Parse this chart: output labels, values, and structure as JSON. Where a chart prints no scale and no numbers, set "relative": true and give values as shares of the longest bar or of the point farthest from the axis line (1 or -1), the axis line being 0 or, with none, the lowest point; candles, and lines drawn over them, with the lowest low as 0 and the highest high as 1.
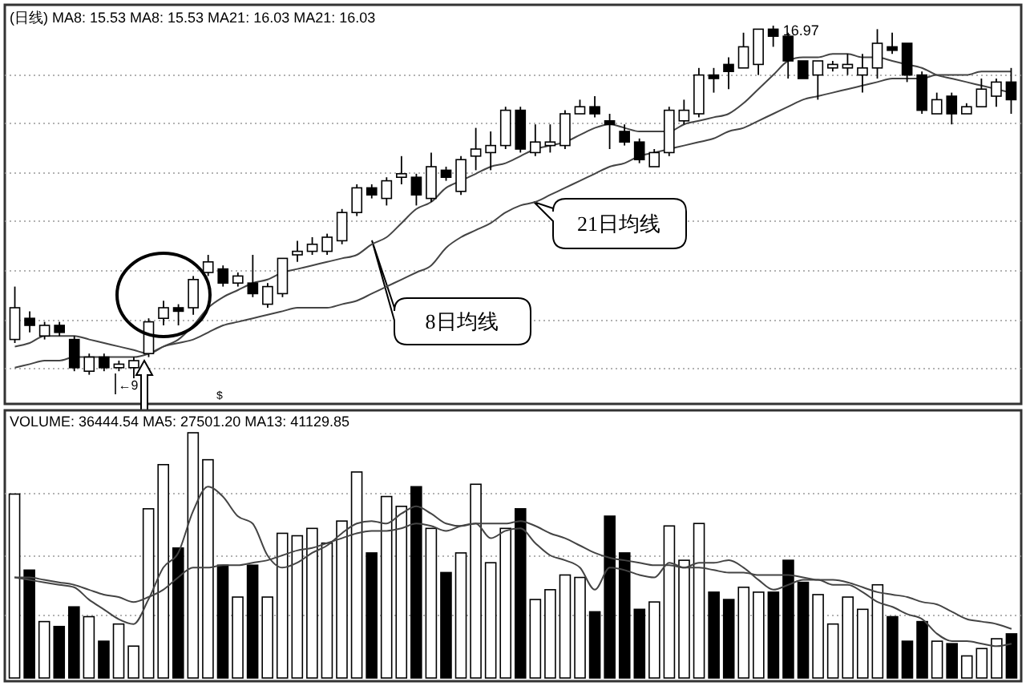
{
  "chart_data": [
    {
      "type": "candlestick",
      "title": "(日线) MA8: 15.53 MA8: 15.53 MA21: 16.03 MA21: 16.03",
      "relative": true,
      "grid": "y",
      "categories": [
        null,
        null,
        null,
        null,
        null,
        null,
        null,
        null,
        null,
        null,
        null,
        null,
        null,
        null,
        null,
        null,
        null,
        null,
        null,
        null,
        null,
        null,
        null,
        null,
        null,
        null,
        null,
        null,
        null,
        null,
        null,
        null,
        null,
        null,
        null,
        null,
        null,
        null,
        null,
        null,
        null,
        null,
        null,
        null,
        null,
        null,
        null,
        null,
        null,
        null,
        null,
        null,
        null,
        null,
        null,
        null,
        null,
        null,
        null,
        null,
        null,
        null,
        null,
        null,
        null,
        null,
        null,
        null
      ],
      "ohlc": [
        [
          0.11,
          0.26,
          0.1,
          0.2
        ],
        [
          0.17,
          0.19,
          0.13,
          0.15
        ],
        [
          0.12,
          0.16,
          0.11,
          0.15
        ],
        [
          0.15,
          0.16,
          0.12,
          0.13
        ],
        [
          0.11,
          0.12,
          0.02,
          0.03
        ],
        [
          0.02,
          0.07,
          0.01,
          0.06
        ],
        [
          0.06,
          0.07,
          0.02,
          0.03
        ],
        [
          0.03,
          0.05,
          0.02,
          0.04
        ],
        [
          0.03,
          0.06,
          0,
          0.05
        ],
        [
          0.07,
          0.17,
          0.06,
          0.16
        ],
        [
          0.17,
          0.22,
          0.15,
          0.2
        ],
        [
          0.2,
          0.21,
          0.15,
          0.19
        ],
        [
          0.2,
          0.29,
          0.18,
          0.28
        ],
        [
          0.3,
          0.35,
          0.29,
          0.33
        ],
        [
          0.31,
          0.32,
          0.26,
          0.27
        ],
        [
          0.27,
          0.3,
          0.26,
          0.29
        ],
        [
          0.27,
          0.35,
          0.23,
          0.24
        ],
        [
          0.21,
          0.27,
          0.2,
          0.26
        ],
        [
          0.24,
          0.34,
          0.23,
          0.34
        ],
        [
          0.35,
          0.39,
          0.33,
          0.36
        ],
        [
          0.36,
          0.4,
          0.35,
          0.38
        ],
        [
          0.36,
          0.41,
          0.35,
          0.4
        ],
        [
          0.39,
          0.48,
          0.38,
          0.47
        ],
        [
          0.47,
          0.55,
          0.46,
          0.54
        ],
        [
          0.54,
          0.55,
          0.51,
          0.52
        ],
        [
          0.51,
          0.57,
          0.49,
          0.56
        ],
        [
          0.57,
          0.63,
          0.55,
          0.58
        ],
        [
          0.57,
          0.58,
          0.49,
          0.52
        ],
        [
          0.51,
          0.64,
          0.5,
          0.6
        ],
        [
          0.59,
          0.6,
          0.56,
          0.57
        ],
        [
          0.53,
          0.63,
          0.52,
          0.62
        ],
        [
          0.63,
          0.71,
          0.59,
          0.65
        ],
        [
          0.64,
          0.7,
          0.59,
          0.66
        ],
        [
          0.66,
          0.77,
          0.65,
          0.76
        ],
        [
          0.76,
          0.77,
          0.64,
          0.65
        ],
        [
          0.64,
          0.72,
          0.63,
          0.67
        ],
        [
          0.66,
          0.72,
          0.64,
          0.67
        ],
        [
          0.66,
          0.76,
          0.65,
          0.75
        ],
        [
          0.75,
          0.79,
          0.75,
          0.77
        ],
        [
          0.77,
          0.8,
          0.74,
          0.75
        ],
        [
          0.73,
          0.75,
          0.65,
          0.72
        ],
        [
          0.7,
          0.72,
          0.66,
          0.67
        ],
        [
          0.67,
          0.68,
          0.61,
          0.62
        ],
        [
          0.6,
          0.65,
          0.6,
          0.64
        ],
        [
          0.64,
          0.77,
          0.63,
          0.76
        ],
        [
          0.73,
          0.79,
          0.72,
          0.76
        ],
        [
          0.75,
          0.88,
          0.74,
          0.86
        ],
        [
          0.86,
          0.88,
          0.81,
          0.85
        ],
        [
          0.89,
          0.91,
          0.82,
          0.87
        ],
        [
          0.88,
          0.98,
          0.88,
          0.94
        ],
        [
          0.89,
          0.99,
          0.86,
          0.99
        ],
        [
          0.99,
          1,
          0.94,
          0.97
        ],
        [
          0.97,
          0.98,
          0.85,
          0.9
        ],
        [
          0.9,
          0.9,
          0.85,
          0.85
        ],
        [
          0.86,
          0.9,
          0.79,
          0.9
        ],
        [
          0.88,
          0.9,
          0.87,
          0.89
        ],
        [
          0.88,
          0.92,
          0.86,
          0.89
        ],
        [
          0.86,
          0.92,
          0.81,
          0.88
        ],
        [
          0.88,
          0.99,
          0.85,
          0.95
        ],
        [
          0.94,
          0.98,
          0.92,
          0.93
        ],
        [
          0.95,
          0.95,
          0.84,
          0.86
        ],
        [
          0.86,
          0.87,
          0.75,
          0.76
        ],
        [
          0.75,
          0.81,
          0.75,
          0.79
        ],
        [
          0.8,
          0.81,
          0.72,
          0.75
        ],
        [
          0.75,
          0.78,
          0.75,
          0.77
        ],
        [
          0.77,
          0.85,
          0.77,
          0.82
        ],
        [
          0.8,
          0.85,
          0.77,
          0.84
        ],
        [
          0.84,
          0.88,
          0.75,
          0.79
        ]
      ],
      "series": [
        {
          "type": "line",
          "color": "#444444",
          "values": [
            0.09,
            0.1,
            0.12,
            0.12,
            0.12,
            0.11,
            0.1,
            0.09,
            0.08,
            0.07,
            0.09,
            0.11,
            0.15,
            0.2,
            0.23,
            0.25,
            0.27,
            0.28,
            0.3,
            0.31,
            0.32,
            0.33,
            0.34,
            0.35,
            0.38,
            0.4,
            0.44,
            0.48,
            0.5,
            0.54,
            0.56,
            0.58,
            0.6,
            0.61,
            0.63,
            0.65,
            0.66,
            0.67,
            0.69,
            0.71,
            0.72,
            0.71,
            0.7,
            0.7,
            0.7,
            0.72,
            0.73,
            0.74,
            0.75,
            0.78,
            0.82,
            0.86,
            0.9,
            0.91,
            0.91,
            0.92,
            0.92,
            0.91,
            0.91,
            0.9,
            0.89,
            0.88,
            0.86,
            0.85,
            0.84,
            0.83,
            0.82,
            0.81
          ]
        },
        {
          "type": "line",
          "color": "#444444",
          "values": [
            0.03,
            0.04,
            0.05,
            0.05,
            0.06,
            0.06,
            0.06,
            0.06,
            0.06,
            0.07,
            0.09,
            0.1,
            0.11,
            0.13,
            0.15,
            0.16,
            0.17,
            0.18,
            0.19,
            0.2,
            0.2,
            0.2,
            0.21,
            0.22,
            0.24,
            0.26,
            0.28,
            0.3,
            0.32,
            0.37,
            0.4,
            0.42,
            0.44,
            0.47,
            0.49,
            0.5,
            0.52,
            0.54,
            0.56,
            0.58,
            0.6,
            0.61,
            0.63,
            0.64,
            0.65,
            0.66,
            0.67,
            0.68,
            0.7,
            0.71,
            0.73,
            0.75,
            0.77,
            0.79,
            0.8,
            0.81,
            0.82,
            0.83,
            0.84,
            0.85,
            0.85,
            0.85,
            0.86,
            0.86,
            0.86,
            0.87,
            0.87,
            0.87
          ]
        }
      ],
      "annotations": [
        "16.97",
        "8日均线",
        "21日均线",
        "←9",
        "$"
      ]
    },
    {
      "type": "bar",
      "title": "VOLUME: 36444.54 MA5: 27501.20 MA13: 41129.85",
      "relative": true,
      "grid": "y",
      "categories": [
        null,
        null,
        null,
        null,
        null,
        null,
        null,
        null,
        null,
        null,
        null,
        null,
        null,
        null,
        null,
        null,
        null,
        null,
        null,
        null,
        null,
        null,
        null,
        null,
        null,
        null,
        null,
        null,
        null,
        null,
        null,
        null,
        null,
        null,
        null,
        null,
        null,
        null,
        null,
        null,
        null,
        null,
        null,
        null,
        null,
        null,
        null,
        null,
        null,
        null,
        null,
        null,
        null,
        null,
        null,
        null,
        null,
        null,
        null,
        null,
        null,
        null,
        null,
        null,
        null,
        null,
        null,
        null
      ],
      "series": [
        {
          "type": "bar",
          "values": [
            0.75,
            0.44,
            0.23,
            0.21,
            0.29,
            0.25,
            0.15,
            0.22,
            0.13,
            0.69,
            0.87,
            0.53,
            1,
            0.89,
            0.46,
            0.33,
            0.46,
            0.33,
            0.59,
            0.58,
            0.61,
            0.55,
            0.64,
            0.84,
            0.51,
            0.74,
            0.7,
            0.78,
            0.61,
            0.43,
            0.51,
            0.79,
            0.47,
            0.61,
            0.69,
            0.32,
            0.36,
            0.42,
            0.41,
            0.27,
            0.66,
            0.51,
            0.28,
            0.31,
            0.62,
            0.48,
            0.63,
            0.35,
            0.32,
            0.37,
            0.35,
            0.35,
            0.48,
            0.39,
            0.34,
            0.22,
            0.33,
            0.28,
            0.38,
            0.25,
            0.15,
            0.23,
            0.15,
            0.14,
            0.09,
            0.12,
            0.16,
            0.18
          ],
          "colors": [
            "#ffffff",
            "#000000",
            "#ffffff",
            "#000000",
            "#000000",
            "#ffffff",
            "#000000",
            "#ffffff",
            "#ffffff",
            "#ffffff",
            "#ffffff",
            "#000000",
            "#ffffff",
            "#ffffff",
            "#000000",
            "#ffffff",
            "#000000",
            "#ffffff",
            "#ffffff",
            "#ffffff",
            "#ffffff",
            "#ffffff",
            "#ffffff",
            "#ffffff",
            "#000000",
            "#ffffff",
            "#ffffff",
            "#000000",
            "#ffffff",
            "#000000",
            "#ffffff",
            "#ffffff",
            "#ffffff",
            "#ffffff",
            "#000000",
            "#ffffff",
            "#ffffff",
            "#ffffff",
            "#ffffff",
            "#000000",
            "#000000",
            "#000000",
            "#000000",
            "#ffffff",
            "#ffffff",
            "#ffffff",
            "#ffffff",
            "#000000",
            "#000000",
            "#ffffff",
            "#ffffff",
            "#000000",
            "#000000",
            "#000000",
            "#ffffff",
            "#ffffff",
            "#ffffff",
            "#ffffff",
            "#ffffff",
            "#000000",
            "#000000",
            "#000000",
            "#ffffff",
            "#000000",
            "#ffffff",
            "#ffffff",
            "#ffffff",
            "#000000"
          ]
        },
        {
          "type": "line",
          "color": "#444444",
          "values": [
            0.41,
            0.4,
            0.39,
            0.38,
            0.37,
            0.32,
            0.28,
            0.24,
            0.22,
            0.32,
            0.45,
            0.51,
            0.68,
            0.78,
            0.74,
            0.66,
            0.63,
            0.5,
            0.45,
            0.47,
            0.51,
            0.54,
            0.59,
            0.63,
            0.64,
            0.63,
            0.67,
            0.7,
            0.67,
            0.63,
            0.62,
            0.63,
            0.57,
            0.6,
            0.61,
            0.55,
            0.5,
            0.48,
            0.45,
            0.36,
            0.45,
            0.44,
            0.42,
            0.41,
            0.47,
            0.45,
            0.47,
            0.47,
            0.48,
            0.45,
            0.4,
            0.36,
            0.38,
            0.4,
            0.4,
            0.38,
            0.38,
            0.35,
            0.31,
            0.29,
            0.26,
            0.24,
            0.18,
            0.15,
            0.15,
            0.14,
            0.13,
            0.14
          ]
        },
        {
          "type": "line",
          "color": "#444444",
          "values": [
            0.41,
            0.41,
            0.4,
            0.39,
            0.38,
            0.36,
            0.34,
            0.33,
            0.31,
            0.33,
            0.36,
            0.41,
            0.45,
            0.45,
            0.46,
            0.46,
            0.47,
            0.48,
            0.5,
            0.52,
            0.53,
            0.55,
            0.57,
            0.59,
            0.6,
            0.6,
            0.61,
            0.63,
            0.62,
            0.6,
            0.62,
            0.63,
            0.63,
            0.63,
            0.64,
            0.62,
            0.59,
            0.57,
            0.54,
            0.51,
            0.49,
            0.48,
            0.47,
            0.46,
            0.46,
            0.45,
            0.45,
            0.44,
            0.43,
            0.43,
            0.42,
            0.42,
            0.42,
            0.41,
            0.4,
            0.4,
            0.39,
            0.37,
            0.35,
            0.34,
            0.33,
            0.31,
            0.3,
            0.27,
            0.24,
            0.23,
            0.22,
            0.2
          ]
        }
      ]
    }
  ]
}
